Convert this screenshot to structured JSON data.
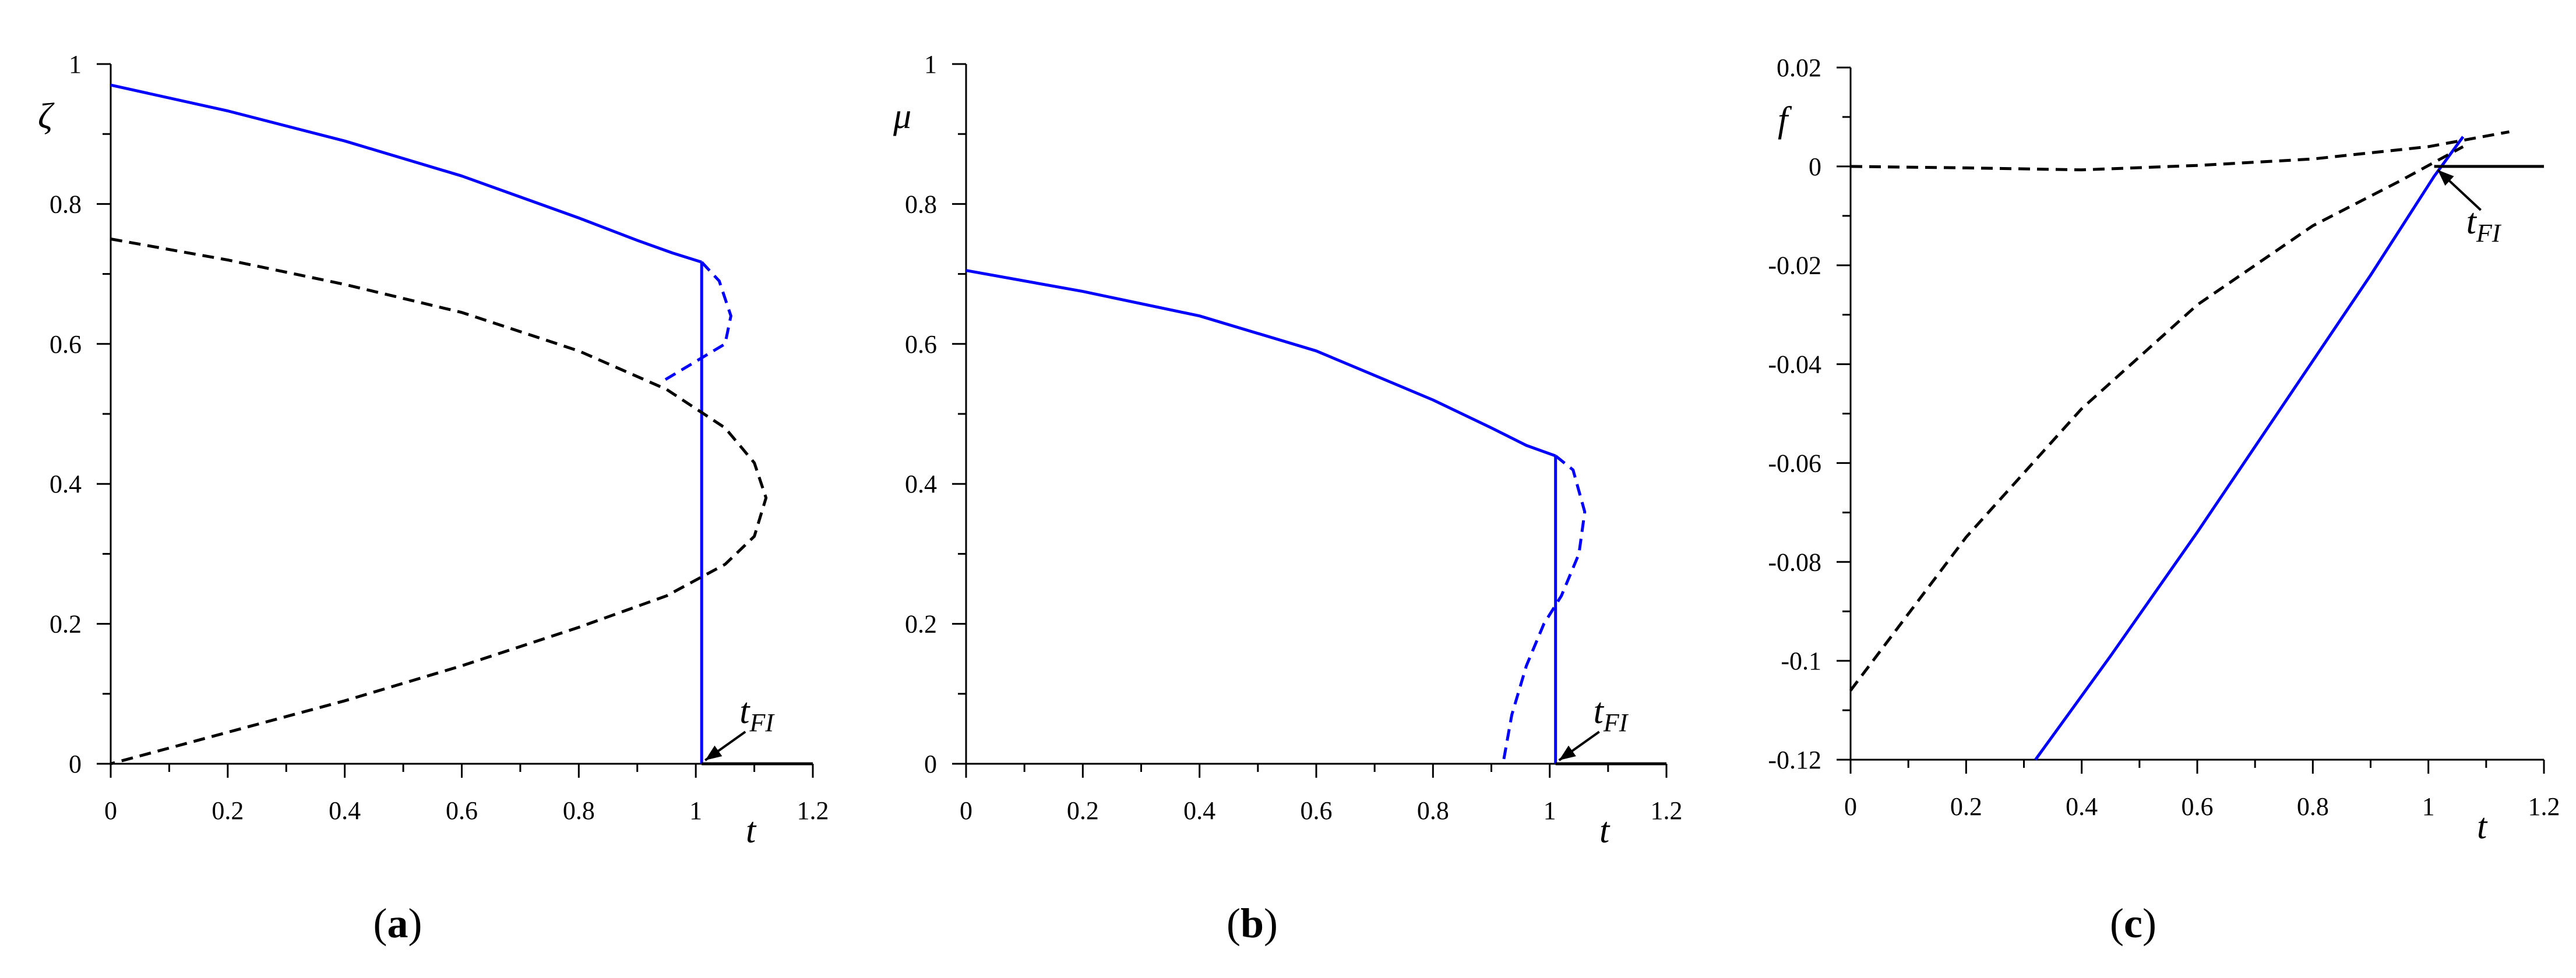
{
  "figure": {
    "panels": [
      "(a)",
      "(b)",
      "(c)"
    ]
  },
  "colors": {
    "blue": "#0000ff",
    "black": "#000000"
  },
  "chart_data": [
    {
      "type": "line",
      "panel": "a",
      "panel_label": "a",
      "xlabel": "t",
      "ylabel": "ζ",
      "xlim": [
        0,
        1.2
      ],
      "ylim": [
        0,
        1
      ],
      "xticks": [
        "0",
        "0.2",
        "0.4",
        "0.6",
        "0.8",
        "1",
        "1.2"
      ],
      "yticks": [
        "0",
        "0.2",
        "0.4",
        "0.6",
        "0.8",
        "1"
      ],
      "annotation": {
        "text": "t",
        "sub": "FI",
        "t": 1.01,
        "value": 0
      },
      "series": [
        {
          "color": "blue",
          "dash": false,
          "x": [
            0,
            0.2,
            0.4,
            0.6,
            0.8,
            0.9,
            0.96,
            1.01
          ],
          "y": [
            0.97,
            0.933,
            0.89,
            0.84,
            0.78,
            0.748,
            0.73,
            0.717
          ]
        },
        {
          "color": "blue",
          "dash": false,
          "x": [
            1.01,
            1.01
          ],
          "y": [
            0.717,
            0
          ]
        },
        {
          "color": "blue",
          "dash": true,
          "x": [
            1.01,
            1.04,
            1.06,
            1.05,
            1.02,
            0.98,
            0.94
          ],
          "y": [
            0.717,
            0.69,
            0.64,
            0.6,
            0.585,
            0.565,
            0.545
          ]
        },
        {
          "color": "black",
          "dash": true,
          "x": [
            0,
            0.2,
            0.4,
            0.6,
            0.8,
            0.95,
            1.05,
            1.1,
            1.12,
            1.1,
            1.05,
            0.95,
            0.8,
            0.6,
            0.4,
            0.2,
            0
          ],
          "y": [
            0.75,
            0.72,
            0.685,
            0.645,
            0.59,
            0.535,
            0.48,
            0.43,
            0.38,
            0.325,
            0.285,
            0.24,
            0.195,
            0.14,
            0.09,
            0.045,
            0
          ]
        },
        {
          "color": "black",
          "dash": false,
          "x": [
            1.01,
            1.2
          ],
          "y": [
            0,
            0
          ]
        }
      ]
    },
    {
      "type": "line",
      "panel": "b",
      "panel_label": "b",
      "xlabel": "t",
      "ylabel": "μ",
      "xlim": [
        0,
        1.2
      ],
      "ylim": [
        0,
        1
      ],
      "xticks": [
        "0",
        "0.2",
        "0.4",
        "0.6",
        "0.8",
        "1",
        "1.2"
      ],
      "yticks": [
        "0",
        "0.2",
        "0.4",
        "0.6",
        "0.8",
        "1"
      ],
      "annotation": {
        "text": "t",
        "sub": "FI",
        "t": 1.01,
        "value": 0
      },
      "series": [
        {
          "color": "blue",
          "dash": false,
          "x": [
            0,
            0.2,
            0.4,
            0.6,
            0.8,
            0.9,
            0.96,
            1.01
          ],
          "y": [
            0.705,
            0.675,
            0.64,
            0.59,
            0.52,
            0.48,
            0.455,
            0.44
          ]
        },
        {
          "color": "blue",
          "dash": false,
          "x": [
            1.01,
            1.01
          ],
          "y": [
            0.44,
            0
          ]
        },
        {
          "color": "blue",
          "dash": true,
          "x": [
            1.01,
            1.04,
            1.06,
            1.05,
            1.02,
            0.99,
            0.96,
            0.935,
            0.92
          ],
          "y": [
            0.44,
            0.42,
            0.36,
            0.3,
            0.24,
            0.2,
            0.14,
            0.07,
            0
          ]
        },
        {
          "color": "black",
          "dash": false,
          "x": [
            1.01,
            1.2
          ],
          "y": [
            0,
            0
          ]
        }
      ]
    },
    {
      "type": "line",
      "panel": "c",
      "panel_label": "c",
      "xlabel": "t",
      "ylabel": "f",
      "xlim": [
        0,
        1.2
      ],
      "ylim": [
        -0.12,
        0.02
      ],
      "xticks": [
        "0",
        "0.2",
        "0.4",
        "0.6",
        "0.8",
        "1",
        "1.2"
      ],
      "yticks": [
        "-0.12",
        "-0.1",
        "-0.08",
        "-0.06",
        "-0.04",
        "-0.02",
        "0",
        "0.02"
      ],
      "annotation": {
        "text": "t",
        "sub": "FI",
        "t": 1.01,
        "value": 0
      },
      "series": [
        {
          "color": "blue",
          "dash": false,
          "x": [
            0.32,
            0.45,
            0.6,
            0.75,
            0.9,
            1.01,
            1.06
          ],
          "y": [
            -0.12,
            -0.099,
            -0.074,
            -0.048,
            -0.022,
            -0.002,
            0.006
          ]
        },
        {
          "color": "black",
          "dash": true,
          "x": [
            0,
            0.2,
            0.4,
            0.6,
            0.8,
            0.95,
            1.06
          ],
          "y": [
            -0.106,
            -0.075,
            -0.049,
            -0.028,
            -0.012,
            -0.003,
            0.004
          ]
        },
        {
          "color": "black",
          "dash": true,
          "x": [
            0,
            0.2,
            0.4,
            0.6,
            0.8,
            1.0,
            1.14
          ],
          "y": [
            0,
            -0.0003,
            -0.0007,
            0.0002,
            0.0015,
            0.004,
            0.007
          ]
        },
        {
          "color": "black",
          "dash": false,
          "x": [
            1.01,
            1.2
          ],
          "y": [
            0,
            0
          ]
        }
      ]
    }
  ]
}
